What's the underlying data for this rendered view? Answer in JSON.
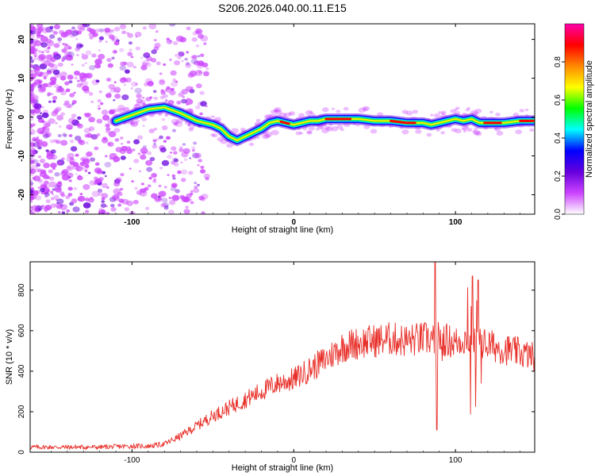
{
  "title": "S206.2026.040.00.11.E15",
  "chart_data": [
    {
      "type": "heatmap",
      "xlabel": "Height of straight line (km)",
      "ylabel": "Frequency (Hz)",
      "xlim": [
        -163,
        149
      ],
      "ylim": [
        -25,
        24
      ],
      "xticks": [
        -100,
        0,
        100
      ],
      "yticks": [
        -20,
        -10,
        0,
        10,
        20
      ],
      "colorbar": {
        "label": "Normalized spectral amplitude",
        "range": [
          0,
          1
        ],
        "ticks": [
          0.0,
          0.2,
          0.4,
          0.6,
          0.8
        ],
        "ticklabels": [
          "0.0",
          "0.2",
          "0.4",
          "0.6",
          "0.8"
        ],
        "colors": [
          "#ffffff",
          "#cc44ff",
          "#6600dd",
          "#0000ff",
          "#00ffff",
          "#00ff00",
          "#ffff00",
          "#ff8800",
          "#ff0000",
          "#ff00aa"
        ]
      },
      "ridge": {
        "x": [
          -110,
          -100,
          -90,
          -80,
          -70,
          -60,
          -50,
          -45,
          -40,
          -35,
          -30,
          -25,
          -20,
          -15,
          -10,
          -5,
          0,
          5,
          10,
          15,
          20,
          30,
          40,
          50,
          60,
          70,
          80,
          85,
          90,
          95,
          100,
          105,
          110,
          115,
          120,
          130,
          140,
          149
        ],
        "y": [
          -1,
          0.5,
          2,
          2.5,
          1,
          -1,
          -2,
          -3,
          -5,
          -6,
          -5,
          -4,
          -3,
          -1.5,
          -1,
          -1.5,
          -2,
          -1.5,
          -1,
          -1,
          -0.5,
          -0.5,
          -0.5,
          -1,
          -1,
          -1.5,
          -1.5,
          -2,
          -1.5,
          -1,
          -0.5,
          -1,
          -0.5,
          -1.5,
          -1.5,
          -1.5,
          -1,
          -1
        ]
      }
    },
    {
      "type": "line",
      "xlabel": "Height of straight line (km)",
      "ylabel": "SNR (10 * v/v)",
      "xlim": [
        -163,
        149
      ],
      "ylim": [
        0,
        940
      ],
      "xticks": [
        -100,
        0,
        100
      ],
      "yticks": [
        0,
        200,
        400,
        600,
        800
      ],
      "color": "#e8302a",
      "series": [
        {
          "name": "SNR",
          "x": [
            -163,
            -140,
            -120,
            -100,
            -90,
            -80,
            -70,
            -60,
            -50,
            -40,
            -30,
            -20,
            -10,
            0,
            10,
            20,
            30,
            40,
            50,
            60,
            70,
            80,
            85,
            88,
            92,
            100,
            105,
            110,
            113,
            116,
            120,
            130,
            140,
            149
          ],
          "y": [
            25,
            25,
            25,
            30,
            30,
            40,
            80,
            130,
            180,
            220,
            260,
            300,
            340,
            360,
            410,
            460,
            520,
            540,
            550,
            560,
            550,
            560,
            560,
            560,
            560,
            540,
            560,
            560,
            520,
            540,
            530,
            510,
            490,
            470
          ]
        }
      ],
      "spikes": [
        {
          "x": 87.5,
          "y": 940
        },
        {
          "x": 88.5,
          "y": 110
        },
        {
          "x": 110.5,
          "y": 870
        },
        {
          "x": 112.5,
          "y": 150
        },
        {
          "x": 114.0,
          "y": 850
        }
      ]
    }
  ]
}
